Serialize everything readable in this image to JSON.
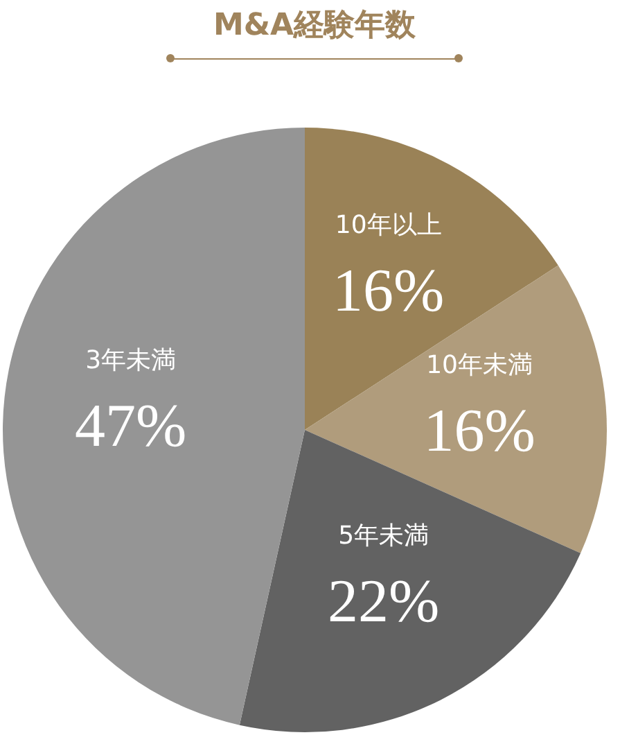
{
  "chart_data": {
    "type": "pie",
    "title": "M&A経験年数",
    "categories": [
      "10年以上",
      "10年未満",
      "5年未満",
      "3年未満"
    ],
    "values": [
      16,
      16,
      22,
      47
    ],
    "colors": [
      "#9a8257",
      "#b09c7c",
      "#626262",
      "#959595"
    ],
    "value_labels": [
      "16%",
      "16%",
      "22%",
      "47%"
    ]
  }
}
